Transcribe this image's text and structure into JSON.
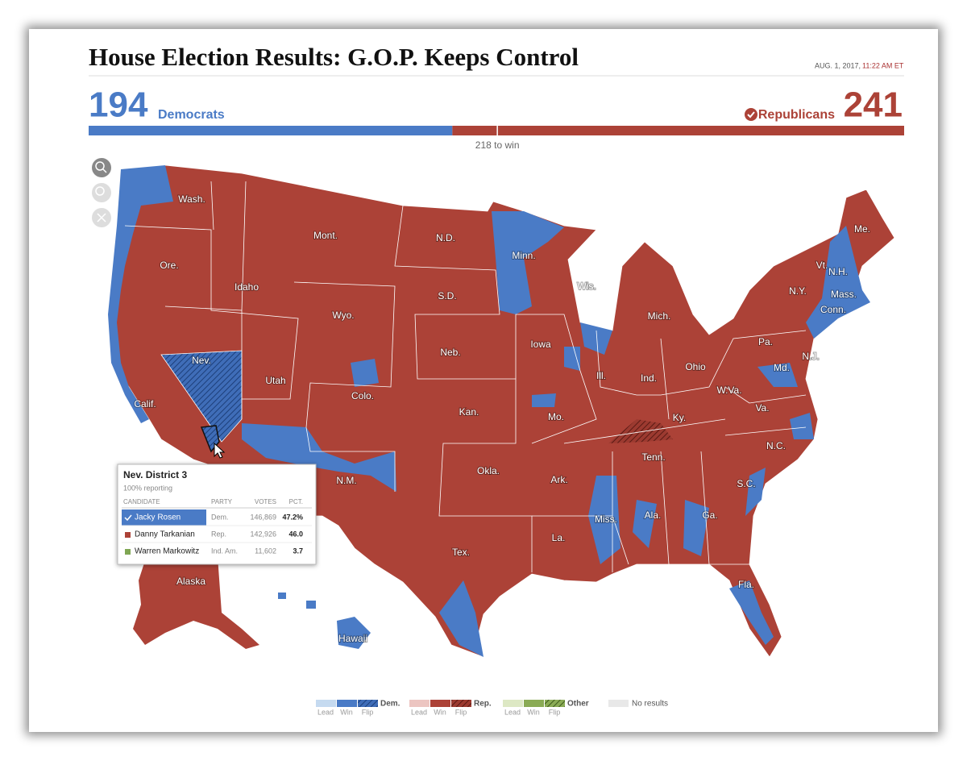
{
  "header": {
    "title": "House Election Results: G.O.P. Keeps Control",
    "date": "AUG. 1, 2017,",
    "time": "11:22 AM ET"
  },
  "scoreboard": {
    "democrats": {
      "seats": 194,
      "label": "Democrats"
    },
    "republicans": {
      "seats": 241,
      "label": "Republicans"
    },
    "majority": {
      "value": 218,
      "label": "218 to win"
    }
  },
  "map": {
    "state_labels": [
      "Wash.",
      "Ore.",
      "Calif.",
      "Nev.",
      "Idaho",
      "Mont.",
      "Wyo.",
      "Utah",
      "Colo.",
      "N.M.",
      "Okla.",
      "Tex.",
      "N.D.",
      "S.D.",
      "Neb.",
      "Kan.",
      "Minn.",
      "Iowa",
      "Mo.",
      "Ark.",
      "La.",
      "Wis.",
      "Ill.",
      "Miss.",
      "Ala.",
      "Ga.",
      "Fla.",
      "Tenn.",
      "Ky.",
      "Ind.",
      "Ohio",
      "Mich.",
      "W.Va.",
      "Va.",
      "N.C.",
      "S.C.",
      "Pa.",
      "N.Y.",
      "Md.",
      "N.J.",
      "Conn.",
      "Mass.",
      "N.H.",
      "Vt.",
      "Me.",
      "Alaska",
      "Hawaii"
    ]
  },
  "tooltip": {
    "title": "Nev. District 3",
    "reporting": "100% reporting",
    "columns": [
      "CANDIDATE",
      "PARTY",
      "VOTES",
      "PCT."
    ],
    "rows": [
      [
        "Jacky Rosen",
        "Dem.",
        "146,869",
        "47.2%"
      ],
      [
        "Danny Tarkanian",
        "Rep.",
        "142,926",
        "46.0"
      ],
      [
        "Warren Markowitz",
        "Ind. Am.",
        "11,602",
        "3.7"
      ]
    ]
  },
  "legend": {
    "groups": [
      {
        "name": "Dem.",
        "items": [
          "Lead",
          "Win",
          "Flip"
        ]
      },
      {
        "name": "Rep.",
        "items": [
          "Lead",
          "Win",
          "Flip"
        ]
      },
      {
        "name": "Other",
        "items": [
          "Lead",
          "Win",
          "Flip"
        ]
      }
    ],
    "no_results": "No results"
  }
}
